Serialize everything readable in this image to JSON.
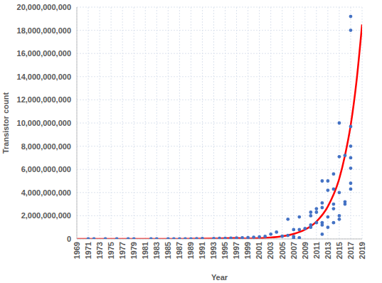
{
  "chart_data": {
    "type": "scatter",
    "x_label": "Year",
    "y_label": "Transistor count",
    "xlim": [
      1969,
      2019
    ],
    "xticks": [
      1969,
      1971,
      1973,
      1975,
      1977,
      1979,
      1981,
      1983,
      1985,
      1987,
      1989,
      1991,
      1993,
      1995,
      1997,
      1999,
      2001,
      2003,
      2005,
      2007,
      2009,
      2011,
      2013,
      2015,
      2017,
      2019
    ],
    "ylim": [
      0,
      20000000000
    ],
    "yticks": [
      {
        "value": 0,
        "label": "0"
      },
      {
        "value": 2000000000,
        "label": "2,000,000,000"
      },
      {
        "value": 4000000000,
        "label": "4,000,000,000"
      },
      {
        "value": 6000000000,
        "label": "6,000,000,000"
      },
      {
        "value": 8000000000,
        "label": "8,000,000,000"
      },
      {
        "value": 10000000000,
        "label": "10,000,000,000"
      },
      {
        "value": 12000000000,
        "label": "12,000,000,000"
      },
      {
        "value": 14000000000,
        "label": "14,000,000,000"
      },
      {
        "value": 16000000000,
        "label": "16,000,000,000"
      },
      {
        "value": 18000000000,
        "label": "18,000,000,000"
      },
      {
        "value": 20000000000,
        "label": "20,000,000,000"
      }
    ],
    "grid": true,
    "series": [
      {
        "type": "scatter",
        "color": "#4472c4",
        "marker": "circle",
        "x": [
          1971,
          1972,
          1974,
          1976,
          1978,
          1979,
          1982,
          1983,
          1985,
          1986,
          1987,
          1988,
          1989,
          1990,
          1991,
          1993,
          1994,
          1995,
          1996,
          1997,
          1998,
          1999,
          2000,
          2001,
          2002,
          2003,
          2004,
          2005,
          2006,
          2006,
          2007,
          2007,
          2007,
          2008,
          2008,
          2008,
          2009,
          2010,
          2010,
          2010,
          2010,
          2011,
          2011,
          2011,
          2012,
          2012,
          2012,
          2012,
          2012,
          2012,
          2013,
          2013,
          2013,
          2013,
          2014,
          2014,
          2014,
          2014,
          2014,
          2015,
          2015,
          2015,
          2015,
          2015,
          2016,
          2016,
          2016,
          2017,
          2017,
          2017,
          2017,
          2017,
          2017,
          2017,
          2017
        ],
        "values": [
          2300,
          3500,
          4500,
          6500,
          29000,
          68000,
          134000,
          275000,
          1180000,
          3100000,
          5500000,
          7500000,
          9500000,
          20000000,
          30000000,
          42000000,
          50000000,
          60000000,
          70000000,
          80000000,
          100000000,
          120000000,
          150000000,
          180000000,
          220000000,
          410000000,
          590000000,
          230000000,
          1700000000,
          300000000,
          800000000,
          200000000,
          50000000,
          800000000,
          1900000000,
          100000000,
          900000000,
          2300000000,
          2000000000,
          1200000000,
          1000000000,
          2600000000,
          2300000000,
          1400000000,
          5000000000,
          3100000000,
          2700000000,
          1400000000,
          1200000000,
          400000000,
          5000000000,
          4200000000,
          1900000000,
          1000000000,
          5600000000,
          4300000000,
          3000000000,
          2600000000,
          1400000000,
          10000000000,
          7100000000,
          4000000000,
          2000000000,
          1700000000,
          7200000000,
          3200000000,
          3000000000,
          19200000000,
          18000000000,
          9700000000,
          8000000000,
          7000000000,
          6100000000,
          4800000000,
          4300000000
        ]
      },
      {
        "type": "line",
        "color": "#ff0000",
        "line_style": "solid",
        "x": [
          1969,
          1973,
          1977,
          1981,
          1985,
          1989,
          1993,
          1997,
          1999,
          2001,
          2003,
          2005,
          2007,
          2009,
          2011,
          2013,
          2015,
          2016,
          2017,
          2018,
          2019
        ],
        "values": [
          100000,
          300000,
          700000,
          1800000,
          4500000,
          11000000,
          28000000,
          70000000,
          35000000,
          65000000,
          120000000,
          230000000,
          430000000,
          800000000,
          1500000000,
          2800000000,
          5200000000,
          7200000000,
          9800000000,
          13500000000,
          18500000000
        ]
      }
    ]
  }
}
